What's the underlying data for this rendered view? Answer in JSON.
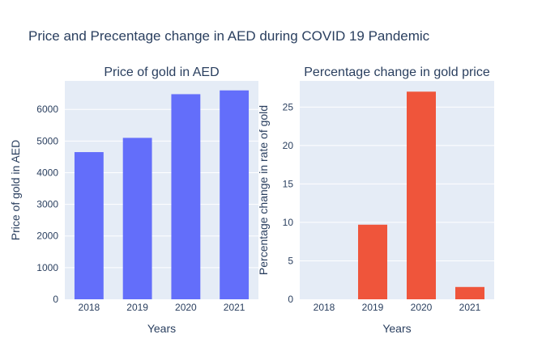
{
  "figure_title": "Price and Precentage change in AED during COVID 19 Pandemic",
  "colors": {
    "plot_bg": "#E5ECF6",
    "grid": "#FFFFFF",
    "text": "#2a3f5f"
  },
  "chart_data": [
    {
      "type": "bar",
      "title": "Price of gold in AED",
      "xlabel": "Years",
      "ylabel": "Price of gold in AED",
      "categories": [
        "2018",
        "2019",
        "2020",
        "2021"
      ],
      "values": [
        4650,
        5100,
        6480,
        6600
      ],
      "ylim": [
        0,
        6900
      ],
      "yticks": [
        0,
        1000,
        2000,
        3000,
        4000,
        5000,
        6000
      ],
      "color": "#636EFA",
      "grid": true
    },
    {
      "type": "bar",
      "title": "Percentage change in gold price",
      "xlabel": "Years",
      "ylabel": "Percentage change in rate of gold",
      "categories": [
        "2018",
        "2019",
        "2020",
        "2021"
      ],
      "values": [
        0,
        9.7,
        27.0,
        1.6
      ],
      "ylim": [
        0,
        28.4
      ],
      "yticks": [
        0,
        5,
        10,
        15,
        20,
        25
      ],
      "color": "#EF553B",
      "grid": true
    }
  ]
}
